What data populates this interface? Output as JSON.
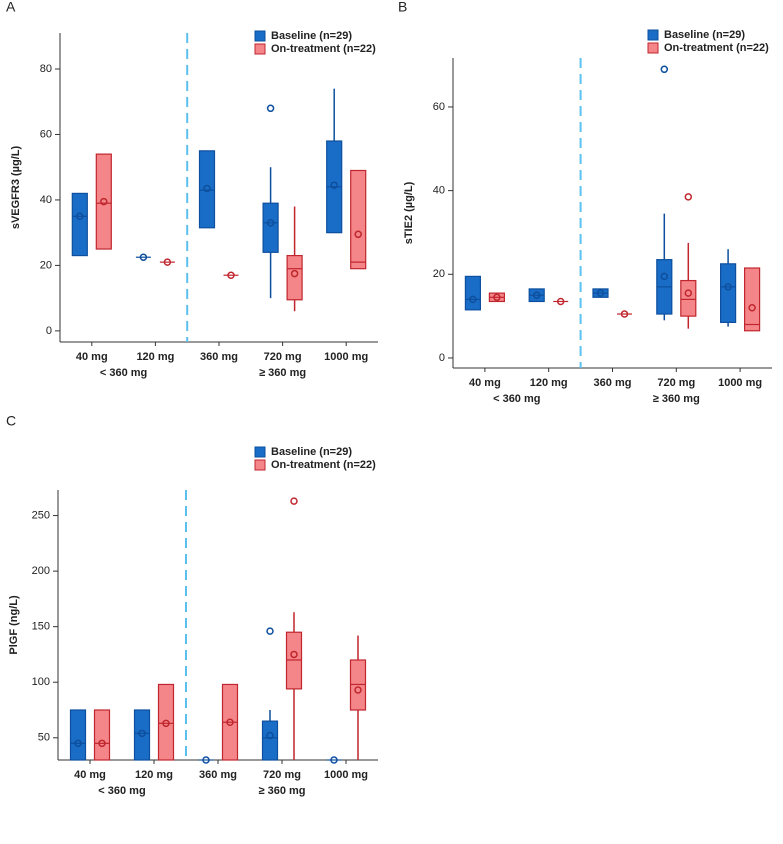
{
  "chart_data": [
    {
      "type": "box",
      "panel_label": "A",
      "ylabel": "sVEGFR3 (µg/L)",
      "ylim": [
        -3.4,
        91
      ],
      "yticks": [
        0,
        20,
        40,
        60,
        80
      ],
      "categories": [
        "40 mg",
        "120 mg",
        "360 mg",
        "720 mg",
        "1000 mg"
      ],
      "groups": [
        "< 360 mg",
        "≥ 360 mg"
      ],
      "series": [
        {
          "name": "Baseline (n=29)",
          "color": "#1a6dc6",
          "edgecolor": "#0d4f9e",
          "boxes": [
            {
              "q1": 23,
              "median": 35,
              "q3": 42,
              "mean": 35
            },
            {
              "median": 22.5,
              "mean": 22.5
            },
            {
              "q1": 31.5,
              "median": 43,
              "q3": 55,
              "mean": 43.5
            },
            {
              "min": 10,
              "q1": 24,
              "median": 33,
              "q3": 39,
              "max": 50,
              "mean": 33,
              "outliers": [
                68
              ]
            },
            {
              "q1": 30,
              "median": 44,
              "q3": 58,
              "max": 74,
              "mean": 44.5
            }
          ]
        },
        {
          "name": "On-treatment (n=22)",
          "color": "#f4868a",
          "edgecolor": "#c0262d",
          "boxes": [
            {
              "q1": 25,
              "median": 39,
              "q3": 54,
              "mean": 39.5
            },
            {
              "median": 21,
              "mean": 21
            },
            {
              "median": 17,
              "mean": 17
            },
            {
              "min": 6,
              "q1": 9.5,
              "median": 19,
              "q3": 23,
              "max": 38,
              "mean": 17.5
            },
            {
              "q1": 19,
              "median": 21,
              "q3": 49,
              "mean": 29.5
            }
          ]
        }
      ]
    },
    {
      "type": "box",
      "panel_label": "B",
      "ylabel": "sTIE2 (µg/L)",
      "ylim": [
        -2.4,
        71.7
      ],
      "yticks": [
        0,
        20,
        40,
        60
      ],
      "categories": [
        "40 mg",
        "120 mg",
        "360 mg",
        "720 mg",
        "1000 mg"
      ],
      "groups": [
        "< 360 mg",
        "≥ 360 mg"
      ],
      "series": [
        {
          "name": "Baseline (n=29)",
          "color": "#1a6dc6",
          "edgecolor": "#0d4f9e",
          "boxes": [
            {
              "q1": 11.5,
              "median": 14,
              "q3": 19.5,
              "mean": 14
            },
            {
              "q1": 13.5,
              "median": 15,
              "q3": 16.5,
              "mean": 15
            },
            {
              "q1": 14.5,
              "median": 15.5,
              "q3": 16.5,
              "mean": 15.5
            },
            {
              "min": 9,
              "q1": 10.5,
              "median": 17,
              "q3": 23.5,
              "max": 34.5,
              "mean": 19.5,
              "outliers": [
                69
              ]
            },
            {
              "min": 7.5,
              "q1": 8.5,
              "median": 17,
              "q3": 22.5,
              "max": 26,
              "mean": 17
            }
          ]
        },
        {
          "name": "On-treatment (n=22)",
          "color": "#f4868a",
          "edgecolor": "#c0262d",
          "boxes": [
            {
              "q1": 13.5,
              "median": 14.5,
              "q3": 15.5,
              "mean": 14.5
            },
            {
              "median": 13.5,
              "mean": 13.5
            },
            {
              "median": 10.5,
              "mean": 10.5
            },
            {
              "min": 7,
              "q1": 10,
              "median": 14,
              "q3": 18.5,
              "max": 27.5,
              "mean": 15.5,
              "outliers": [
                38.5
              ]
            },
            {
              "q1": 6.5,
              "median": 8,
              "q3": 21.5,
              "mean": 12
            }
          ]
        }
      ]
    },
    {
      "type": "box",
      "panel_label": "C",
      "ylabel": "PlGF (ng/L)",
      "ylim": [
        30,
        273
      ],
      "yticks": [
        50,
        100,
        150,
        200,
        250
      ],
      "categories": [
        "40 mg",
        "120 mg",
        "360 mg",
        "720 mg",
        "1000 mg"
      ],
      "groups": [
        "< 360 mg",
        "≥ 360 mg"
      ],
      "series": [
        {
          "name": "Baseline (n=29)",
          "color": "#1a6dc6",
          "edgecolor": "#0d4f9e",
          "boxes": [
            {
              "q1": 30,
              "median": 45,
              "q3": 75,
              "mean": 45
            },
            {
              "q1": 30,
              "median": 54,
              "q3": 75,
              "mean": 54
            },
            {
              "median": 30,
              "mean": 30
            },
            {
              "q1": 30,
              "median": 50,
              "q3": 65,
              "max": 75,
              "mean": 52,
              "outliers": [
                146
              ]
            },
            {
              "median": 30,
              "mean": 30
            }
          ]
        },
        {
          "name": "On-treatment (n=22)",
          "color": "#f4868a",
          "edgecolor": "#c0262d",
          "boxes": [
            {
              "q1": 30,
              "median": 45,
              "q3": 75,
              "mean": 45
            },
            {
              "q1": 30,
              "median": 63,
              "q3": 98,
              "mean": 63
            },
            {
              "q1": 30,
              "median": 64,
              "q3": 98,
              "mean": 64
            },
            {
              "min": 30,
              "q1": 94,
              "median": 120,
              "q3": 145,
              "max": 163,
              "mean": 125,
              "outliers": [
                263
              ]
            },
            {
              "min": 30,
              "q1": 75,
              "median": 98,
              "q3": 120,
              "max": 142,
              "mean": 93
            }
          ]
        }
      ]
    }
  ]
}
